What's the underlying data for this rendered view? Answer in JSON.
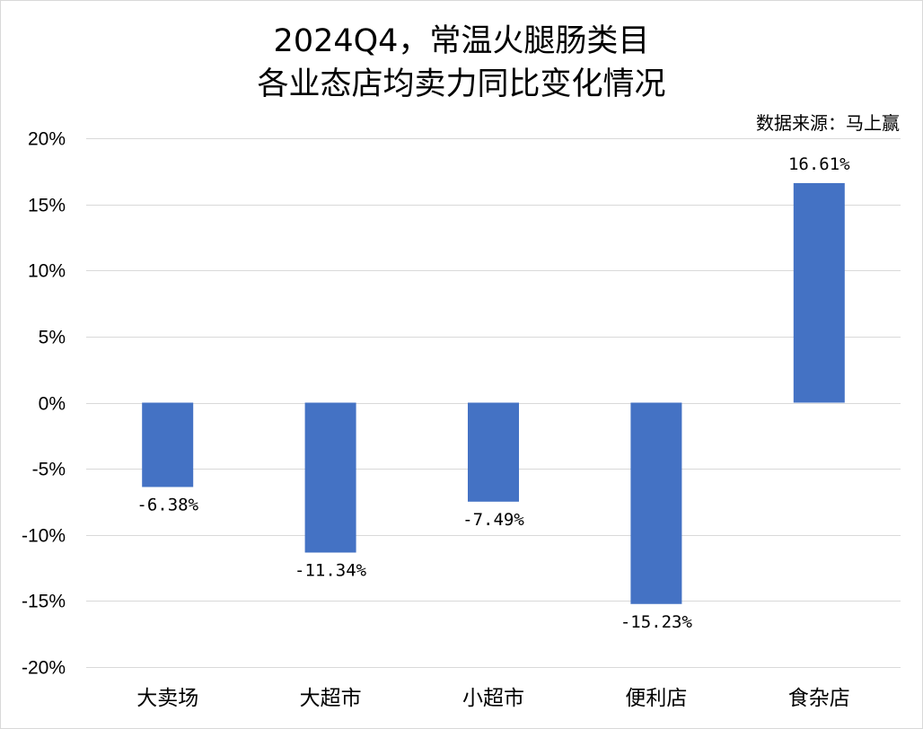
{
  "chart_data": {
    "type": "bar",
    "title_line1": "2024Q4，常温火腿肠类目",
    "title_line2": "各业态店均卖力同比变化情况",
    "source": "数据来源：马上赢",
    "categories": [
      "大卖场",
      "大超市",
      "小超市",
      "便利店",
      "食杂店"
    ],
    "values": [
      -6.38,
      -11.34,
      -7.49,
      -15.23,
      16.61
    ],
    "data_labels": [
      "-6.38%",
      "-11.34%",
      "-7.49%",
      "-15.23%",
      "16.61%"
    ],
    "yticks": [
      20,
      15,
      10,
      5,
      0,
      -5,
      -10,
      -15,
      -20
    ],
    "ytick_labels": [
      "20%",
      "15%",
      "10%",
      "5%",
      "0%",
      "-5%",
      "-10%",
      "-15%",
      "-20%"
    ],
    "ylim": [
      -20,
      20
    ],
    "grid": true,
    "bar_color": "#4472C4",
    "grid_color": "#d9d9d9"
  }
}
